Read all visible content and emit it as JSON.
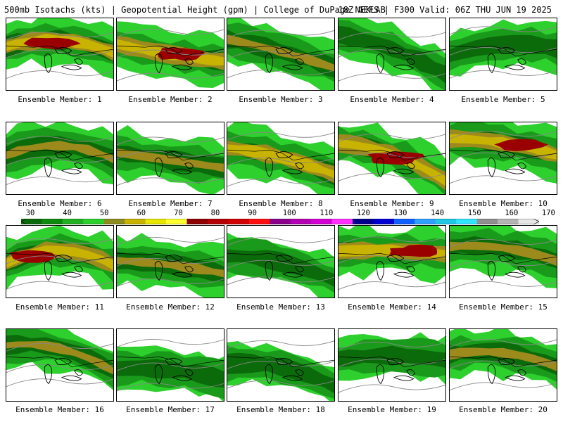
{
  "header": {
    "title_left": "500mb Isotachs (kts) | Geopotential Height (gpm) | College of DuPage NEXLAB",
    "title_right": "18Z GEFS | F300 Valid: 06Z THU JUN 19 2025"
  },
  "colorbar": {
    "ticks": [
      "30",
      "40",
      "50",
      "60",
      "70",
      "80",
      "90",
      "100",
      "110",
      "120",
      "130",
      "140",
      "150",
      "160",
      "170"
    ],
    "colors": [
      "#0b6b0b",
      "#0e8a0e",
      "#22b022",
      "#2ed02e",
      "#8c8c20",
      "#c8b400",
      "#e6e600",
      "#ffff30",
      "#8c0000",
      "#b40000",
      "#d20000",
      "#ff1010",
      "#8c008c",
      "#b400b4",
      "#d200d2",
      "#ff30ff",
      "#00008c",
      "#0000d2",
      "#1060ff",
      "#30a0ff",
      "#20c8e6",
      "#30e6ff",
      "#909090",
      "#b4b4b4",
      "#e6e6e6"
    ]
  },
  "panels": [
    {
      "label": "Ensemble Member: 1",
      "max": "max"
    },
    {
      "label": "Ensemble Member: 2",
      "max": "max"
    },
    {
      "label": "Ensemble Member: 3",
      "max": "mid"
    },
    {
      "label": "Ensemble Member: 4",
      "max": "low"
    },
    {
      "label": "Ensemble Member: 5",
      "max": "low"
    },
    {
      "label": "Ensemble Member: 6",
      "max": "mid"
    },
    {
      "label": "Ensemble Member: 7",
      "max": "mid"
    },
    {
      "label": "Ensemble Member: 8",
      "max": "high"
    },
    {
      "label": "Ensemble Member: 9",
      "max": "max"
    },
    {
      "label": "Ensemble Member: 10",
      "max": "max"
    },
    {
      "label": "Ensemble Member: 11",
      "max": "max"
    },
    {
      "label": "Ensemble Member: 12",
      "max": "mid"
    },
    {
      "label": "Ensemble Member: 13",
      "max": "low"
    },
    {
      "label": "Ensemble Member: 14",
      "max": "max"
    },
    {
      "label": "Ensemble Member: 15",
      "max": "mid"
    },
    {
      "label": "Ensemble Member: 16",
      "max": "mid"
    },
    {
      "label": "Ensemble Member: 17",
      "max": "low"
    },
    {
      "label": "Ensemble Member: 18",
      "max": "low"
    },
    {
      "label": "Ensemble Member: 19",
      "max": "low"
    },
    {
      "label": "Ensemble Member: 20",
      "max": "mid"
    }
  ]
}
